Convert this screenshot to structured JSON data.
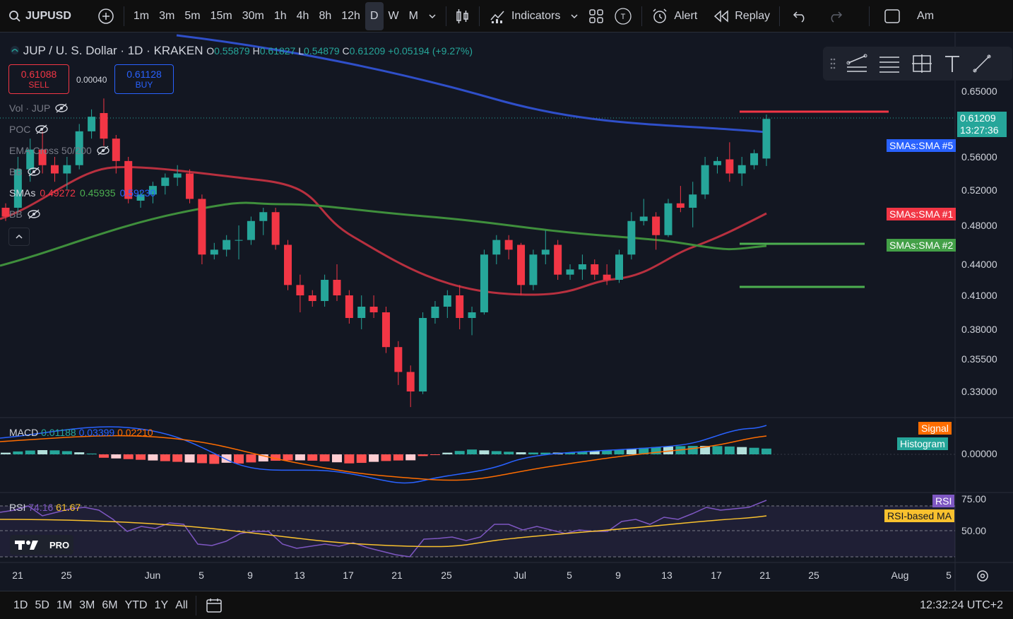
{
  "topbar": {
    "symbol": "JUPUSD",
    "timeframes": [
      "1m",
      "3m",
      "5m",
      "15m",
      "30m",
      "1h",
      "4h",
      "8h",
      "12h",
      "D",
      "W",
      "M"
    ],
    "active_timeframe": "D",
    "indicators_label": "Indicators",
    "alert_label": "Alert",
    "replay_label": "Replay",
    "right_truncated": "Am"
  },
  "legend": {
    "title": "JUP / U. S. Dollar · 1D · KRAKEN",
    "open_k": "O",
    "open": "0.55879",
    "high_k": "H",
    "high": "0.61827",
    "low_k": "L",
    "low": "0.54879",
    "close_k": "C",
    "close": "0.61209",
    "change": "+0.05194 (+9.27%)"
  },
  "trade": {
    "sell_price": "0.61088",
    "sell_label": "SELL",
    "spread": "0.00040",
    "buy_price": "0.61128",
    "buy_label": "BUY"
  },
  "indicators": {
    "vol": "Vol · JUP",
    "poc": "POC",
    "ema": "EMA Cross 50/200",
    "bb": "BB",
    "smas_label": "SMAs",
    "sma1": "0.49272",
    "sma2": "0.45935",
    "sma3": "0.59230",
    "bb2": "BB"
  },
  "price_axis": {
    "ticks": [
      "0.65000",
      "0.56000",
      "0.52000",
      "0.48000",
      "0.44000",
      "0.41000",
      "0.38000",
      "0.35500",
      "0.33000"
    ],
    "last_price": "0.61209",
    "countdown": "13:27:36",
    "tag_sma5": "SMAs:SMA #5",
    "tag_sma1": "SMAs:SMA #1",
    "tag_sma2": "SMAs:SMA #2"
  },
  "macd": {
    "label": "MACD",
    "v1": "0.01188",
    "v2": "0.03399",
    "v3": "0.02210",
    "tag_signal": "Signal",
    "tag_histogram": "Histogram",
    "axis_zero": "0.00000"
  },
  "rsi": {
    "label": "RSI",
    "v1": "74.16",
    "v2": "61.67",
    "tag_rsi": "RSI",
    "tag_ma": "RSI-based MA",
    "axis_75": "75.00",
    "axis_50": "50.00"
  },
  "logo_text": "PRO",
  "date_axis": [
    "21",
    "25",
    "Jun",
    "5",
    "9",
    "13",
    "17",
    "21",
    "25",
    "Jul",
    "5",
    "9",
    "13",
    "17",
    "21",
    "25",
    "Aug",
    "5"
  ],
  "bottombar": {
    "ranges": [
      "1D",
      "5D",
      "1M",
      "3M",
      "6M",
      "YTD",
      "1Y",
      "All"
    ],
    "clock": "12:32:24 UTC+2"
  },
  "colors": {
    "up": "#26a69a",
    "down": "#f23645",
    "sma_blue": "#2f4fc9",
    "sma_red": "#b8303f",
    "sma_green": "#3f8f3c",
    "bg": "#131722"
  },
  "chart_data": {
    "type": "candlestick",
    "candles": [
      {
        "o": 0.5,
        "h": 0.505,
        "l": 0.485,
        "c": 0.49
      },
      {
        "o": 0.5,
        "h": 0.56,
        "l": 0.495,
        "c": 0.545
      },
      {
        "o": 0.545,
        "h": 0.585,
        "l": 0.53,
        "c": 0.57
      },
      {
        "o": 0.57,
        "h": 0.595,
        "l": 0.54,
        "c": 0.55
      },
      {
        "o": 0.55,
        "h": 0.56,
        "l": 0.53,
        "c": 0.54
      },
      {
        "o": 0.54,
        "h": 0.56,
        "l": 0.52,
        "c": 0.55
      },
      {
        "o": 0.55,
        "h": 0.605,
        "l": 0.545,
        "c": 0.595
      },
      {
        "o": 0.595,
        "h": 0.625,
        "l": 0.585,
        "c": 0.615
      },
      {
        "o": 0.62,
        "h": 0.64,
        "l": 0.575,
        "c": 0.585
      },
      {
        "o": 0.585,
        "h": 0.59,
        "l": 0.54,
        "c": 0.555
      },
      {
        "o": 0.555,
        "h": 0.56,
        "l": 0.505,
        "c": 0.51
      },
      {
        "o": 0.508,
        "h": 0.52,
        "l": 0.5,
        "c": 0.515
      },
      {
        "o": 0.515,
        "h": 0.53,
        "l": 0.505,
        "c": 0.525
      },
      {
        "o": 0.525,
        "h": 0.54,
        "l": 0.515,
        "c": 0.535
      },
      {
        "o": 0.535,
        "h": 0.55,
        "l": 0.525,
        "c": 0.54
      },
      {
        "o": 0.54,
        "h": 0.545,
        "l": 0.505,
        "c": 0.51
      },
      {
        "o": 0.51,
        "h": 0.515,
        "l": 0.44,
        "c": 0.45
      },
      {
        "o": 0.45,
        "h": 0.462,
        "l": 0.445,
        "c": 0.455
      },
      {
        "o": 0.455,
        "h": 0.47,
        "l": 0.448,
        "c": 0.465
      },
      {
        "o": 0.465,
        "h": 0.48,
        "l": 0.445,
        "c": 0.465
      },
      {
        "o": 0.465,
        "h": 0.49,
        "l": 0.46,
        "c": 0.485
      },
      {
        "o": 0.485,
        "h": 0.5,
        "l": 0.47,
        "c": 0.495
      },
      {
        "o": 0.495,
        "h": 0.5,
        "l": 0.455,
        "c": 0.46
      },
      {
        "o": 0.46,
        "h": 0.465,
        "l": 0.415,
        "c": 0.42
      },
      {
        "o": 0.42,
        "h": 0.43,
        "l": 0.395,
        "c": 0.41
      },
      {
        "o": 0.41,
        "h": 0.415,
        "l": 0.4,
        "c": 0.405
      },
      {
        "o": 0.405,
        "h": 0.43,
        "l": 0.4,
        "c": 0.425
      },
      {
        "o": 0.425,
        "h": 0.44,
        "l": 0.405,
        "c": 0.41
      },
      {
        "o": 0.41,
        "h": 0.415,
        "l": 0.385,
        "c": 0.39
      },
      {
        "o": 0.39,
        "h": 0.41,
        "l": 0.38,
        "c": 0.4
      },
      {
        "o": 0.4,
        "h": 0.41,
        "l": 0.39,
        "c": 0.395
      },
      {
        "o": 0.395,
        "h": 0.4,
        "l": 0.36,
        "c": 0.365
      },
      {
        "o": 0.365,
        "h": 0.37,
        "l": 0.335,
        "c": 0.345
      },
      {
        "o": 0.345,
        "h": 0.35,
        "l": 0.318,
        "c": 0.33
      },
      {
        "o": 0.33,
        "h": 0.395,
        "l": 0.328,
        "c": 0.39
      },
      {
        "o": 0.39,
        "h": 0.405,
        "l": 0.385,
        "c": 0.4
      },
      {
        "o": 0.4,
        "h": 0.415,
        "l": 0.39,
        "c": 0.41
      },
      {
        "o": 0.41,
        "h": 0.42,
        "l": 0.38,
        "c": 0.39
      },
      {
        "o": 0.39,
        "h": 0.4,
        "l": 0.375,
        "c": 0.395
      },
      {
        "o": 0.395,
        "h": 0.455,
        "l": 0.393,
        "c": 0.45
      },
      {
        "o": 0.45,
        "h": 0.47,
        "l": 0.44,
        "c": 0.465
      },
      {
        "o": 0.465,
        "h": 0.47,
        "l": 0.445,
        "c": 0.455
      },
      {
        "o": 0.46,
        "h": 0.462,
        "l": 0.41,
        "c": 0.42
      },
      {
        "o": 0.42,
        "h": 0.455,
        "l": 0.415,
        "c": 0.45
      },
      {
        "o": 0.45,
        "h": 0.475,
        "l": 0.44,
        "c": 0.455
      },
      {
        "o": 0.46,
        "h": 0.465,
        "l": 0.425,
        "c": 0.43
      },
      {
        "o": 0.43,
        "h": 0.44,
        "l": 0.425,
        "c": 0.435
      },
      {
        "o": 0.435,
        "h": 0.45,
        "l": 0.425,
        "c": 0.44
      },
      {
        "o": 0.44,
        "h": 0.445,
        "l": 0.425,
        "c": 0.43
      },
      {
        "o": 0.43,
        "h": 0.44,
        "l": 0.42,
        "c": 0.425
      },
      {
        "o": 0.425,
        "h": 0.455,
        "l": 0.422,
        "c": 0.45
      },
      {
        "o": 0.45,
        "h": 0.495,
        "l": 0.445,
        "c": 0.485
      },
      {
        "o": 0.485,
        "h": 0.51,
        "l": 0.48,
        "c": 0.49
      },
      {
        "o": 0.49,
        "h": 0.495,
        "l": 0.455,
        "c": 0.47
      },
      {
        "o": 0.47,
        "h": 0.51,
        "l": 0.468,
        "c": 0.505
      },
      {
        "o": 0.505,
        "h": 0.525,
        "l": 0.495,
        "c": 0.5
      },
      {
        "o": 0.5,
        "h": 0.53,
        "l": 0.478,
        "c": 0.515
      },
      {
        "o": 0.515,
        "h": 0.56,
        "l": 0.51,
        "c": 0.55
      },
      {
        "o": 0.55,
        "h": 0.56,
        "l": 0.54,
        "c": 0.555
      },
      {
        "o": 0.557,
        "h": 0.58,
        "l": 0.53,
        "c": 0.54
      },
      {
        "o": 0.54,
        "h": 0.56,
        "l": 0.525,
        "c": 0.55
      },
      {
        "o": 0.55,
        "h": 0.57,
        "l": 0.545,
        "c": 0.565
      },
      {
        "o": 0.558,
        "h": 0.618,
        "l": 0.549,
        "c": 0.612
      }
    ],
    "ylim": [
      0.32,
      0.66
    ]
  }
}
